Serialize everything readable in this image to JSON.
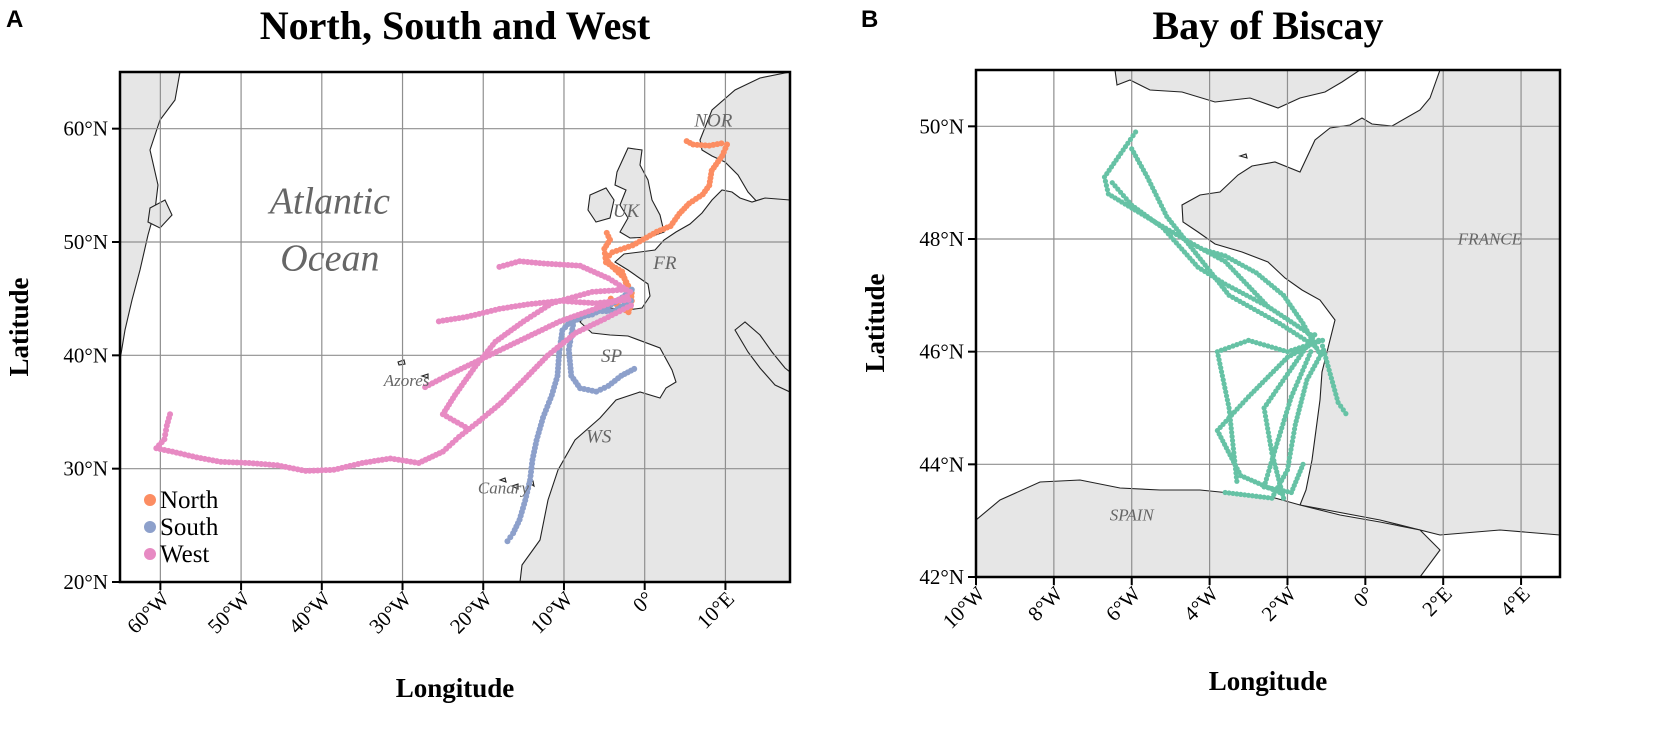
{
  "panels": [
    {
      "letter": "A",
      "title": "North, South and West",
      "xlabel": "Longitude",
      "ylabel": "Latitude",
      "lon_range": [
        -65,
        18
      ],
      "lat_range": [
        20,
        65
      ],
      "x_ticks": [
        {
          "value": -60,
          "label": "60°W"
        },
        {
          "value": -50,
          "label": "50°W"
        },
        {
          "value": -40,
          "label": "40°W"
        },
        {
          "value": -30,
          "label": "30°W"
        },
        {
          "value": -20,
          "label": "20°W"
        },
        {
          "value": -10,
          "label": "10°W"
        },
        {
          "value": 0,
          "label": "0°"
        },
        {
          "value": 10,
          "label": "10°E"
        }
      ],
      "y_ticks": [
        {
          "value": 20,
          "label": "20°N"
        },
        {
          "value": 30,
          "label": "30°N"
        },
        {
          "value": 40,
          "label": "40°N"
        },
        {
          "value": 50,
          "label": "50°N"
        },
        {
          "value": 60,
          "label": "60°N"
        }
      ],
      "region_labels": [
        {
          "text": "Atlantic",
          "lon": -39,
          "lat": 52.5,
          "size": 38
        },
        {
          "text": "Ocean",
          "lon": -39,
          "lat": 47.5,
          "size": 38
        },
        {
          "text": "NOR",
          "lon": 8.5,
          "lat": 60.2,
          "size": 19
        },
        {
          "text": "UK",
          "lon": -2.3,
          "lat": 52.2,
          "size": 19
        },
        {
          "text": "FR",
          "lon": 2.5,
          "lat": 47.6,
          "size": 19
        },
        {
          "text": "SP",
          "lon": -4.1,
          "lat": 39.4,
          "size": 19
        },
        {
          "text": "WS",
          "lon": -5.7,
          "lat": 32.3,
          "size": 19
        },
        {
          "text": "Azores",
          "lon": -29.5,
          "lat": 37.3,
          "size": 17
        },
        {
          "text": "Canary",
          "lon": -17.5,
          "lat": 27.8,
          "size": 17
        }
      ],
      "legend": {
        "position": "bottom-left",
        "items": [
          {
            "label": "North",
            "color": "#fc8d62"
          },
          {
            "label": "South",
            "color": "#8da0cb"
          },
          {
            "label": "West",
            "color": "#e78ac3"
          }
        ]
      },
      "tracks": [
        {
          "group": "North",
          "color": "#fc8d62",
          "points": [
            [
              -1.8,
              44.2
            ],
            [
              -1.6,
              45.5
            ],
            [
              -2.5,
              46.8
            ],
            [
              -4.0,
              47.8
            ],
            [
              -4.8,
              48.5
            ],
            [
              -4.0,
              49.1
            ],
            [
              -1.5,
              49.7
            ],
            [
              1.5,
              50.9
            ],
            [
              3.2,
              51.4
            ],
            [
              4.3,
              52.5
            ],
            [
              5.5,
              53.4
            ],
            [
              7.2,
              54.2
            ],
            [
              8.0,
              55.0
            ],
            [
              8.3,
              56.3
            ],
            [
              9.6,
              57.6
            ],
            [
              10.2,
              58.6
            ],
            [
              9.5,
              58.7
            ],
            [
              8.0,
              58.5
            ],
            [
              6.0,
              58.6
            ],
            [
              5.2,
              58.9
            ]
          ]
        },
        {
          "group": "North",
          "color": "#fc8d62",
          "points": [
            [
              -4.2,
              45.0
            ],
            [
              -3.5,
              44.5
            ],
            [
              -2.0,
              43.8
            ],
            [
              -1.6,
              44.8
            ],
            [
              -2.8,
              47.4
            ],
            [
              -4.8,
              48.2
            ],
            [
              -5.0,
              49.4
            ],
            [
              -4.3,
              50.2
            ],
            [
              -4.7,
              50.8
            ]
          ]
        },
        {
          "group": "South",
          "color": "#8da0cb",
          "points": [
            [
              -1.6,
              45.8
            ],
            [
              -2.8,
              45.1
            ],
            [
              -4.6,
              44.3
            ],
            [
              -6.5,
              43.6
            ],
            [
              -8.8,
              43.3
            ],
            [
              -10.2,
              42.2
            ],
            [
              -10.6,
              40.2
            ],
            [
              -10.8,
              38.2
            ],
            [
              -11.5,
              36.5
            ],
            [
              -12.6,
              34.5
            ],
            [
              -13.4,
              32.5
            ],
            [
              -13.9,
              30.8
            ],
            [
              -14.2,
              29.0
            ],
            [
              -14.8,
              27.2
            ],
            [
              -15.5,
              25.5
            ],
            [
              -16.3,
              24.3
            ],
            [
              -17.0,
              23.6
            ]
          ]
        },
        {
          "group": "South",
          "color": "#8da0cb",
          "points": [
            [
              -1.7,
              44.8
            ],
            [
              -3.8,
              43.9
            ],
            [
              -6.2,
              43.9
            ],
            [
              -8.8,
              43.0
            ],
            [
              -9.4,
              40.5
            ],
            [
              -9.1,
              38.2
            ],
            [
              -8.0,
              37.1
            ],
            [
              -6.0,
              36.8
            ],
            [
              -4.5,
              37.3
            ],
            [
              -2.9,
              38.2
            ],
            [
              -1.3,
              38.8
            ]
          ]
        },
        {
          "group": "West",
          "color": "#e78ac3",
          "points": [
            [
              -1.8,
              45.6
            ],
            [
              -4.5,
              46.8
            ],
            [
              -8.0,
              47.9
            ],
            [
              -12.5,
              48.1
            ],
            [
              -15.5,
              48.3
            ],
            [
              -18.0,
              47.8
            ]
          ]
        },
        {
          "group": "West",
          "color": "#e78ac3",
          "points": [
            [
              -2.0,
              44.9
            ],
            [
              -6.0,
              44.6
            ],
            [
              -10.5,
              44.8
            ],
            [
              -14.5,
              44.5
            ],
            [
              -18.0,
              44.1
            ],
            [
              -22.0,
              43.4
            ],
            [
              -25.5,
              43.0
            ]
          ]
        },
        {
          "group": "West",
          "color": "#e78ac3",
          "points": [
            [
              -2.2,
              45.2
            ],
            [
              -6.5,
              44.0
            ],
            [
              -10.5,
              43.0
            ],
            [
              -14.0,
              41.8
            ],
            [
              -17.5,
              40.6
            ],
            [
              -21.0,
              39.4
            ],
            [
              -24.5,
              38.2
            ],
            [
              -27.2,
              37.2
            ]
          ]
        },
        {
          "group": "West",
          "color": "#e78ac3",
          "points": [
            [
              -2.4,
              45.8
            ],
            [
              -6.5,
              45.6
            ],
            [
              -11.5,
              44.6
            ],
            [
              -15.0,
              43.0
            ],
            [
              -18.5,
              41.2
            ],
            [
              -21.0,
              39.0
            ],
            [
              -23.5,
              36.5
            ],
            [
              -25.0,
              34.8
            ],
            [
              -21.8,
              33.5
            ]
          ]
        },
        {
          "group": "West",
          "color": "#e78ac3",
          "points": [
            [
              -1.7,
              44.4
            ],
            [
              -5.0,
              43.2
            ],
            [
              -8.5,
              42.0
            ],
            [
              -12.0,
              40.0
            ],
            [
              -15.0,
              37.8
            ],
            [
              -17.8,
              35.8
            ],
            [
              -20.5,
              34.2
            ],
            [
              -23.0,
              32.8
            ],
            [
              -25.0,
              31.5
            ],
            [
              -28.0,
              30.5
            ],
            [
              -31.5,
              30.9
            ],
            [
              -35.0,
              30.5
            ],
            [
              -38.5,
              29.9
            ],
            [
              -42.0,
              29.8
            ],
            [
              -45.5,
              30.3
            ],
            [
              -49.0,
              30.5
            ],
            [
              -52.5,
              30.6
            ],
            [
              -55.5,
              31.0
            ],
            [
              -58.5,
              31.5
            ],
            [
              -60.5,
              31.8
            ],
            [
              -59.5,
              32.6
            ],
            [
              -59.2,
              33.8
            ],
            [
              -58.8,
              34.8
            ]
          ]
        }
      ]
    },
    {
      "letter": "B",
      "title": "Bay of Biscay",
      "xlabel": "Longitude",
      "ylabel": "Latitude",
      "lon_range": [
        -10,
        5
      ],
      "lat_range": [
        42,
        51
      ],
      "x_ticks": [
        {
          "value": -10,
          "label": "10°W"
        },
        {
          "value": -8,
          "label": "8°W"
        },
        {
          "value": -6,
          "label": "6°W"
        },
        {
          "value": -4,
          "label": "4°W"
        },
        {
          "value": -2,
          "label": "2°W"
        },
        {
          "value": 0,
          "label": "0°"
        },
        {
          "value": 2,
          "label": "2°E"
        },
        {
          "value": 4,
          "label": "4°E"
        }
      ],
      "y_ticks": [
        {
          "value": 42,
          "label": "42°N"
        },
        {
          "value": 44,
          "label": "44°N"
        },
        {
          "value": 46,
          "label": "46°N"
        },
        {
          "value": 48,
          "label": "48°N"
        },
        {
          "value": 50,
          "label": "50°N"
        }
      ],
      "region_labels": [
        {
          "text": "FRANCE",
          "lon": 3.2,
          "lat": 47.9,
          "size": 17
        },
        {
          "text": "SPAIN",
          "lon": -6.0,
          "lat": 43.0,
          "size": 17
        }
      ],
      "tracks": [
        {
          "group": "Bay of Biscay",
          "color": "#66c2a5",
          "points": [
            [
              -1.1,
              46.0
            ],
            [
              -1.5,
              45.5
            ],
            [
              -1.8,
              44.7
            ],
            [
              -2.0,
              43.9
            ],
            [
              -2.4,
              43.4
            ],
            [
              -3.6,
              43.5
            ]
          ]
        },
        {
          "group": "Bay of Biscay",
          "color": "#66c2a5",
          "points": [
            [
              -1.2,
              46.2
            ],
            [
              -2.0,
              45.9
            ],
            [
              -3.0,
              45.2
            ],
            [
              -3.8,
              44.6
            ],
            [
              -3.2,
              43.8
            ],
            [
              -2.2,
              43.5
            ]
          ]
        },
        {
          "group": "Bay of Biscay",
          "color": "#66c2a5",
          "points": [
            [
              -1.4,
              46.3
            ],
            [
              -2.5,
              46.8
            ],
            [
              -3.6,
              47.6
            ],
            [
              -4.4,
              47.9
            ],
            [
              -5.4,
              48.3
            ],
            [
              -6.6,
              48.8
            ],
            [
              -6.7,
              49.1
            ],
            [
              -6.1,
              49.7
            ],
            [
              -5.9,
              49.9
            ]
          ]
        },
        {
          "group": "Bay of Biscay",
          "color": "#66c2a5",
          "points": [
            [
              -1.3,
              46.1
            ],
            [
              -2.2,
              46.5
            ],
            [
              -3.5,
              47.0
            ],
            [
              -4.3,
              47.7
            ],
            [
              -5.1,
              48.4
            ],
            [
              -5.6,
              49.1
            ],
            [
              -6.0,
              49.6
            ]
          ]
        },
        {
          "group": "Bay of Biscay",
          "color": "#66c2a5",
          "points": [
            [
              -1.1,
              46.2
            ],
            [
              -2.0,
              46.0
            ],
            [
              -3.0,
              46.2
            ],
            [
              -3.8,
              46.0
            ],
            [
              -3.5,
              45.0
            ],
            [
              -3.3,
              43.7
            ]
          ]
        },
        {
          "group": "Bay of Biscay",
          "color": "#66c2a5",
          "points": [
            [
              -1.2,
              46.0
            ],
            [
              -1.6,
              46.5
            ],
            [
              -2.1,
              47.0
            ],
            [
              -2.8,
              47.4
            ],
            [
              -3.6,
              47.7
            ],
            [
              -4.1,
              47.8
            ]
          ]
        },
        {
          "group": "Bay of Biscay",
          "color": "#66c2a5",
          "points": [
            [
              -1.1,
              46.1
            ],
            [
              -0.9,
              45.6
            ],
            [
              -0.7,
              45.1
            ],
            [
              -0.5,
              44.9
            ]
          ]
        },
        {
          "group": "Bay of Biscay",
          "color": "#66c2a5",
          "points": [
            [
              -1.4,
              46.0
            ],
            [
              -1.9,
              45.2
            ],
            [
              -2.3,
              44.3
            ],
            [
              -2.6,
              43.6
            ],
            [
              -1.9,
              43.5
            ],
            [
              -1.6,
              44.0
            ]
          ]
        },
        {
          "group": "Bay of Biscay",
          "color": "#66c2a5",
          "points": [
            [
              -1.3,
              46.3
            ],
            [
              -2.0,
              45.6
            ],
            [
              -2.6,
              45.0
            ],
            [
              -2.4,
              44.2
            ],
            [
              -2.1,
              43.4
            ]
          ]
        },
        {
          "group": "Bay of Biscay",
          "color": "#66c2a5",
          "points": [
            [
              -6.5,
              49.0
            ],
            [
              -6.0,
              48.6
            ],
            [
              -5.2,
              48.2
            ],
            [
              -4.3,
              47.5
            ],
            [
              -3.6,
              47.2
            ],
            [
              -2.5,
              46.8
            ]
          ]
        }
      ]
    }
  ]
}
